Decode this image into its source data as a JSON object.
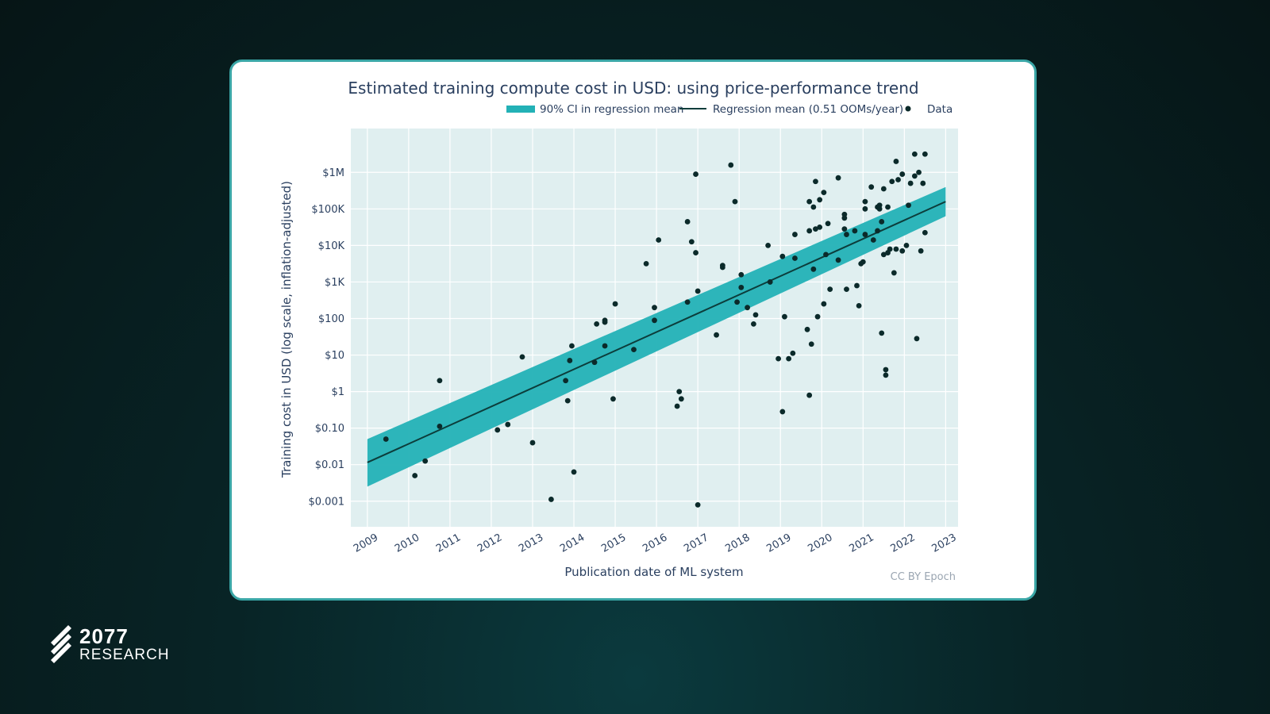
{
  "chart_data": {
    "type": "scatter",
    "title": "Estimated training compute cost in USD: using price-performance trend",
    "xlabel": "Publication date of ML system",
    "ylabel": "Training cost in USD (log scale, inflation-adjusted)",
    "credit": "CC BY Epoch",
    "legend": {
      "position": "top-right",
      "entries": [
        "90% CI in regression mean",
        "Regression mean (0.51 OOMs/year)",
        "Data"
      ]
    },
    "xlim": [
      2008.6,
      2023.3
    ],
    "ylim_log10": [
      -3.7,
      7.2
    ],
    "x_ticks": [
      2009,
      2010,
      2011,
      2012,
      2013,
      2014,
      2015,
      2016,
      2017,
      2018,
      2019,
      2020,
      2021,
      2022,
      2023
    ],
    "y_ticks": [
      {
        "log": -3,
        "label": "$0.001"
      },
      {
        "log": -2,
        "label": "$0.01"
      },
      {
        "log": -1,
        "label": "$0.10"
      },
      {
        "log": 0,
        "label": "$1"
      },
      {
        "log": 1,
        "label": "$10"
      },
      {
        "log": 2,
        "label": "$100"
      },
      {
        "log": 3,
        "label": "$1K"
      },
      {
        "log": 4,
        "label": "$10K"
      },
      {
        "log": 5,
        "label": "$100K"
      },
      {
        "log": 6,
        "label": "$1M"
      }
    ],
    "regression": {
      "x": [
        2009.0,
        2023.0
      ],
      "log_y": [
        -1.94,
        5.2
      ],
      "slope_ooms_per_year": 0.51
    },
    "ci_band": {
      "x": [
        2009.0,
        2023.0
      ],
      "log_lower": [
        -2.6,
        4.8
      ],
      "log_upper": [
        -1.3,
        5.6
      ]
    },
    "points_log10": [
      [
        2009.45,
        -1.3
      ],
      [
        2010.15,
        -2.3
      ],
      [
        2010.4,
        -1.9
      ],
      [
        2010.75,
        0.3
      ],
      [
        2010.75,
        -0.95
      ],
      [
        2012.15,
        -1.05
      ],
      [
        2012.4,
        -0.9
      ],
      [
        2012.75,
        0.95
      ],
      [
        2013.0,
        -1.4
      ],
      [
        2013.45,
        -2.95
      ],
      [
        2013.8,
        0.3
      ],
      [
        2013.85,
        -0.25
      ],
      [
        2013.9,
        0.85
      ],
      [
        2013.95,
        1.25
      ],
      [
        2014.0,
        -2.2
      ],
      [
        2014.5,
        0.8
      ],
      [
        2014.55,
        1.85
      ],
      [
        2014.75,
        1.25
      ],
      [
        2014.75,
        1.95
      ],
      [
        2014.75,
        1.9
      ],
      [
        2014.95,
        -0.2
      ],
      [
        2015.0,
        2.4
      ],
      [
        2015.45,
        1.15
      ],
      [
        2015.75,
        3.5
      ],
      [
        2015.95,
        2.3
      ],
      [
        2015.95,
        1.95
      ],
      [
        2016.05,
        4.15
      ],
      [
        2016.5,
        -0.4
      ],
      [
        2016.55,
        0.0
      ],
      [
        2016.6,
        -0.2
      ],
      [
        2016.75,
        4.65
      ],
      [
        2016.75,
        2.45
      ],
      [
        2016.85,
        4.1
      ],
      [
        2016.95,
        5.95
      ],
      [
        2016.95,
        3.8
      ],
      [
        2017.0,
        2.75
      ],
      [
        2017.0,
        -3.1
      ],
      [
        2017.45,
        1.55
      ],
      [
        2017.6,
        3.4
      ],
      [
        2017.6,
        3.45
      ],
      [
        2017.8,
        6.2
      ],
      [
        2017.9,
        5.2
      ],
      [
        2017.95,
        2.45
      ],
      [
        2018.05,
        3.2
      ],
      [
        2018.05,
        2.85
      ],
      [
        2018.2,
        2.3
      ],
      [
        2018.35,
        1.85
      ],
      [
        2018.4,
        2.1
      ],
      [
        2018.7,
        4.0
      ],
      [
        2018.75,
        3.0
      ],
      [
        2018.95,
        0.9
      ],
      [
        2019.05,
        -0.55
      ],
      [
        2019.05,
        3.7
      ],
      [
        2019.1,
        2.05
      ],
      [
        2019.2,
        0.9
      ],
      [
        2019.3,
        1.05
      ],
      [
        2019.35,
        3.65
      ],
      [
        2019.35,
        4.3
      ],
      [
        2019.65,
        1.7
      ],
      [
        2019.7,
        5.2
      ],
      [
        2019.7,
        4.4
      ],
      [
        2019.7,
        -0.1
      ],
      [
        2019.75,
        1.3
      ],
      [
        2019.8,
        3.35
      ],
      [
        2019.8,
        5.05
      ],
      [
        2019.85,
        4.45
      ],
      [
        2019.85,
        5.75
      ],
      [
        2019.9,
        2.05
      ],
      [
        2019.95,
        5.25
      ],
      [
        2019.95,
        4.5
      ],
      [
        2020.05,
        5.45
      ],
      [
        2020.05,
        2.4
      ],
      [
        2020.1,
        3.75
      ],
      [
        2020.15,
        4.6
      ],
      [
        2020.2,
        2.8
      ],
      [
        2020.4,
        5.85
      ],
      [
        2020.4,
        3.6
      ],
      [
        2020.55,
        4.85
      ],
      [
        2020.55,
        4.75
      ],
      [
        2020.55,
        4.45
      ],
      [
        2020.6,
        4.3
      ],
      [
        2020.6,
        2.8
      ],
      [
        2020.8,
        4.4
      ],
      [
        2020.85,
        2.9
      ],
      [
        2020.9,
        2.35
      ],
      [
        2020.95,
        3.5
      ],
      [
        2021.0,
        3.55
      ],
      [
        2021.05,
        4.3
      ],
      [
        2021.05,
        5.0
      ],
      [
        2021.05,
        5.2
      ],
      [
        2021.2,
        5.6
      ],
      [
        2021.25,
        4.15
      ],
      [
        2021.35,
        5.05
      ],
      [
        2021.35,
        4.4
      ],
      [
        2021.4,
        5.0
      ],
      [
        2021.4,
        5.1
      ],
      [
        2021.45,
        4.65
      ],
      [
        2021.45,
        1.6
      ],
      [
        2021.5,
        3.75
      ],
      [
        2021.5,
        5.55
      ],
      [
        2021.55,
        0.45
      ],
      [
        2021.55,
        0.6
      ],
      [
        2021.6,
        5.05
      ],
      [
        2021.6,
        3.8
      ],
      [
        2021.65,
        3.9
      ],
      [
        2021.7,
        5.75
      ],
      [
        2021.75,
        3.25
      ],
      [
        2021.8,
        6.3
      ],
      [
        2021.8,
        3.9
      ],
      [
        2021.85,
        5.8
      ],
      [
        2021.95,
        5.95
      ],
      [
        2021.95,
        3.85
      ],
      [
        2022.05,
        4.0
      ],
      [
        2022.1,
        5.1
      ],
      [
        2022.15,
        5.7
      ],
      [
        2022.25,
        6.5
      ],
      [
        2022.25,
        5.9
      ],
      [
        2022.3,
        1.45
      ],
      [
        2022.35,
        6.0
      ],
      [
        2022.4,
        3.85
      ],
      [
        2022.45,
        5.7
      ],
      [
        2022.5,
        4.35
      ],
      [
        2022.5,
        6.5
      ]
    ]
  },
  "branding": {
    "number": "2077",
    "word": "RESEARCH"
  },
  "colors": {
    "ci": "#23b1b6",
    "line": "#0c3d3b",
    "point": "#0b2a2a",
    "plot_bg": "#e0eff0"
  }
}
